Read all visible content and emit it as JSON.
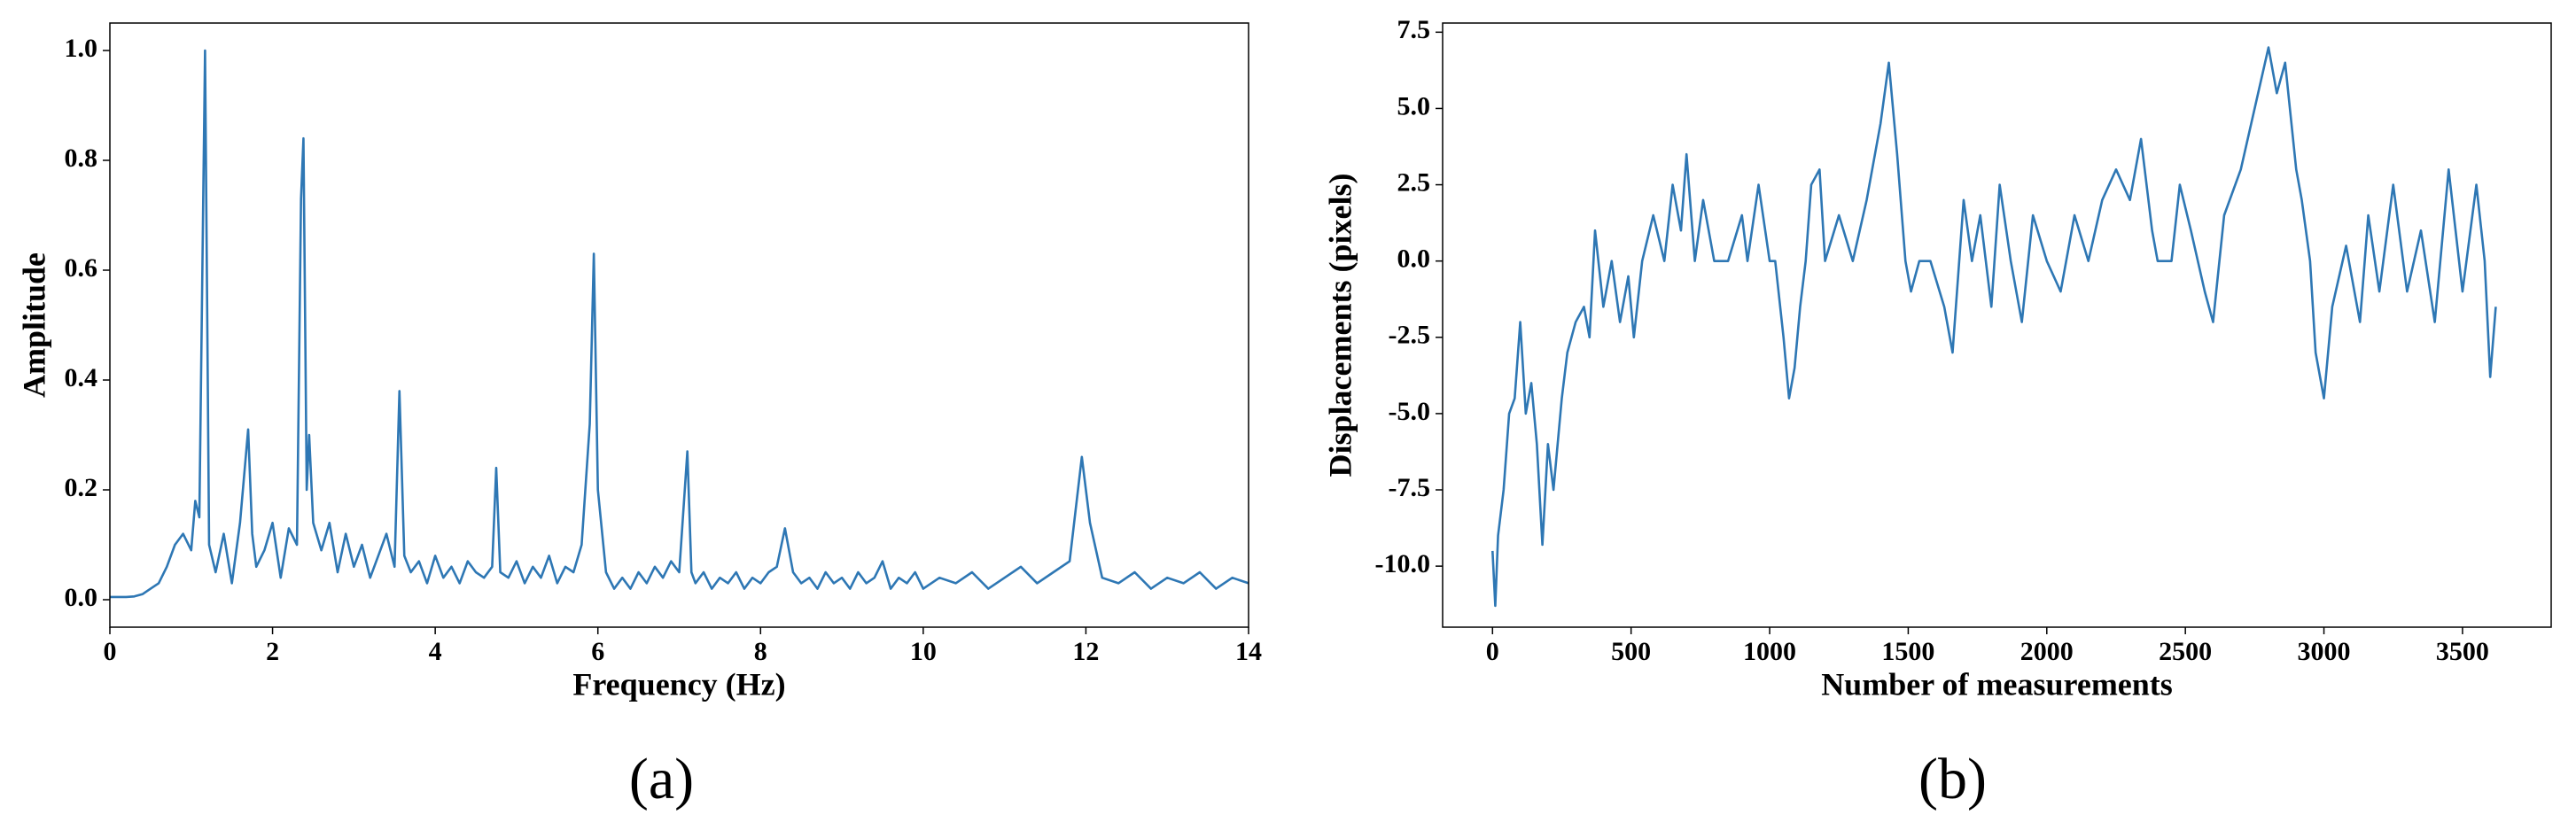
{
  "chart_data": [
    {
      "type": "line",
      "caption": "(a)",
      "xlabel": "Frequency (Hz)",
      "ylabel": "Amplitude",
      "color": "#2e77b4",
      "xlim": [
        0,
        14
      ],
      "ylim": [
        -0.05,
        1.05
      ],
      "xticks": [
        0,
        2,
        4,
        6,
        8,
        10,
        12,
        14
      ],
      "yticks": [
        {
          "value": 0,
          "label": "0.0"
        },
        {
          "value": 0.2,
          "label": "0.2"
        },
        {
          "value": 0.4,
          "label": "0.4"
        },
        {
          "value": 0.6,
          "label": "0.6"
        },
        {
          "value": 0.8,
          "label": "0.8"
        },
        {
          "value": 1,
          "label": "1.0"
        }
      ],
      "x": [
        0,
        0.1,
        0.2,
        0.3,
        0.4,
        0.5,
        0.6,
        0.7,
        0.8,
        0.9,
        1.0,
        1.05,
        1.1,
        1.17,
        1.22,
        1.3,
        1.4,
        1.5,
        1.6,
        1.7,
        1.75,
        1.8,
        1.9,
        2.0,
        2.1,
        2.2,
        2.3,
        2.35,
        2.38,
        2.42,
        2.45,
        2.5,
        2.6,
        2.7,
        2.8,
        2.9,
        3.0,
        3.1,
        3.2,
        3.3,
        3.4,
        3.5,
        3.56,
        3.62,
        3.7,
        3.8,
        3.9,
        4.0,
        4.1,
        4.2,
        4.3,
        4.4,
        4.5,
        4.6,
        4.7,
        4.75,
        4.8,
        4.9,
        5.0,
        5.1,
        5.2,
        5.3,
        5.4,
        5.5,
        5.6,
        5.7,
        5.8,
        5.9,
        5.95,
        6.0,
        6.1,
        6.2,
        6.3,
        6.4,
        6.5,
        6.6,
        6.7,
        6.8,
        6.9,
        7.0,
        7.1,
        7.15,
        7.2,
        7.3,
        7.4,
        7.5,
        7.6,
        7.7,
        7.8,
        7.9,
        8.0,
        8.1,
        8.2,
        8.3,
        8.4,
        8.5,
        8.6,
        8.7,
        8.8,
        8.9,
        9.0,
        9.1,
        9.2,
        9.3,
        9.4,
        9.5,
        9.6,
        9.7,
        9.8,
        9.9,
        10.0,
        10.2,
        10.4,
        10.6,
        10.8,
        11.0,
        11.2,
        11.4,
        11.6,
        11.8,
        11.95,
        12.05,
        12.2,
        12.4,
        12.6,
        12.8,
        13.0,
        13.2,
        13.4,
        13.6,
        13.8,
        14.0
      ],
      "values": [
        0.005,
        0.005,
        0.005,
        0.006,
        0.01,
        0.02,
        0.03,
        0.06,
        0.1,
        0.12,
        0.09,
        0.18,
        0.15,
        1.0,
        0.1,
        0.05,
        0.12,
        0.03,
        0.14,
        0.31,
        0.12,
        0.06,
        0.09,
        0.14,
        0.04,
        0.13,
        0.1,
        0.73,
        0.84,
        0.2,
        0.3,
        0.14,
        0.09,
        0.14,
        0.05,
        0.12,
        0.06,
        0.1,
        0.04,
        0.08,
        0.12,
        0.06,
        0.38,
        0.08,
        0.05,
        0.07,
        0.03,
        0.08,
        0.04,
        0.06,
        0.03,
        0.07,
        0.05,
        0.04,
        0.06,
        0.24,
        0.05,
        0.04,
        0.07,
        0.03,
        0.06,
        0.04,
        0.08,
        0.03,
        0.06,
        0.05,
        0.1,
        0.32,
        0.63,
        0.2,
        0.05,
        0.02,
        0.04,
        0.02,
        0.05,
        0.03,
        0.06,
        0.04,
        0.07,
        0.05,
        0.27,
        0.05,
        0.03,
        0.05,
        0.02,
        0.04,
        0.03,
        0.05,
        0.02,
        0.04,
        0.03,
        0.05,
        0.06,
        0.13,
        0.05,
        0.03,
        0.04,
        0.02,
        0.05,
        0.03,
        0.04,
        0.02,
        0.05,
        0.03,
        0.04,
        0.07,
        0.02,
        0.04,
        0.03,
        0.05,
        0.02,
        0.04,
        0.03,
        0.05,
        0.02,
        0.04,
        0.06,
        0.03,
        0.05,
        0.07,
        0.26,
        0.14,
        0.04,
        0.03,
        0.05,
        0.02,
        0.04,
        0.03,
        0.05,
        0.02,
        0.04,
        0.03
      ]
    },
    {
      "type": "line",
      "caption": "(b)",
      "xlabel": "Number of measurements",
      "ylabel": "Displacements (pixels)",
      "color": "#2e77b4",
      "xlim": [
        -180,
        3820
      ],
      "ylim": [
        -12,
        7.8
      ],
      "xticks": [
        0,
        500,
        1000,
        1500,
        2000,
        2500,
        3000,
        3500
      ],
      "yticks": [
        {
          "value": -10,
          "label": "-10.0"
        },
        {
          "value": -7.5,
          "label": "-7.5"
        },
        {
          "value": -5,
          "label": "-5.0"
        },
        {
          "value": -2.5,
          "label": "-2.5"
        },
        {
          "value": 0,
          "label": "0.0"
        },
        {
          "value": 2.5,
          "label": "2.5"
        },
        {
          "value": 5,
          "label": "5.0"
        },
        {
          "value": 7.5,
          "label": "7.5"
        }
      ],
      "x": [
        0,
        10,
        20,
        40,
        60,
        80,
        100,
        120,
        140,
        160,
        180,
        200,
        220,
        250,
        270,
        300,
        330,
        350,
        370,
        400,
        430,
        460,
        490,
        510,
        540,
        580,
        620,
        650,
        680,
        700,
        730,
        760,
        800,
        850,
        900,
        920,
        960,
        1000,
        1020,
        1050,
        1070,
        1090,
        1110,
        1130,
        1150,
        1180,
        1200,
        1250,
        1300,
        1350,
        1400,
        1430,
        1460,
        1490,
        1510,
        1540,
        1580,
        1630,
        1660,
        1700,
        1730,
        1760,
        1800,
        1830,
        1870,
        1910,
        1950,
        2000,
        2050,
        2100,
        2150,
        2200,
        2250,
        2300,
        2340,
        2380,
        2400,
        2450,
        2480,
        2520,
        2570,
        2600,
        2640,
        2700,
        2750,
        2800,
        2830,
        2860,
        2900,
        2920,
        2950,
        2970,
        3000,
        3030,
        3080,
        3130,
        3160,
        3200,
        3250,
        3300,
        3350,
        3400,
        3450,
        3500,
        3550,
        3580,
        3600,
        3620
      ],
      "values": [
        -9.5,
        -11.3,
        -9,
        -7.5,
        -5,
        -4.5,
        -2,
        -5,
        -4,
        -6,
        -9.3,
        -6,
        -7.5,
        -4.5,
        -3,
        -2,
        -1.5,
        -2.5,
        1,
        -1.5,
        0,
        -2,
        -0.5,
        -2.5,
        0,
        1.5,
        0,
        2.5,
        1,
        3.5,
        0,
        2,
        0,
        0,
        1.5,
        0,
        2.5,
        0,
        0,
        -2.5,
        -4.5,
        -3.5,
        -1.5,
        0,
        2.5,
        3,
        0,
        1.5,
        0,
        2,
        4.5,
        6.5,
        3.5,
        0,
        -1,
        0,
        0,
        -1.5,
        -3,
        2,
        0,
        1.5,
        -1.5,
        2.5,
        0,
        -2,
        1.5,
        0,
        -1,
        1.5,
        0,
        2,
        3,
        2,
        4,
        1,
        0,
        0,
        2.5,
        1,
        -1,
        -2,
        1.5,
        3,
        5,
        7,
        5.5,
        6.5,
        3,
        2,
        0,
        -3,
        -4.5,
        -1.5,
        0.5,
        -2,
        1.5,
        -1,
        2.5,
        -1,
        1,
        -2,
        3,
        -1,
        2.5,
        0,
        -3.8,
        -1.5
      ]
    }
  ]
}
